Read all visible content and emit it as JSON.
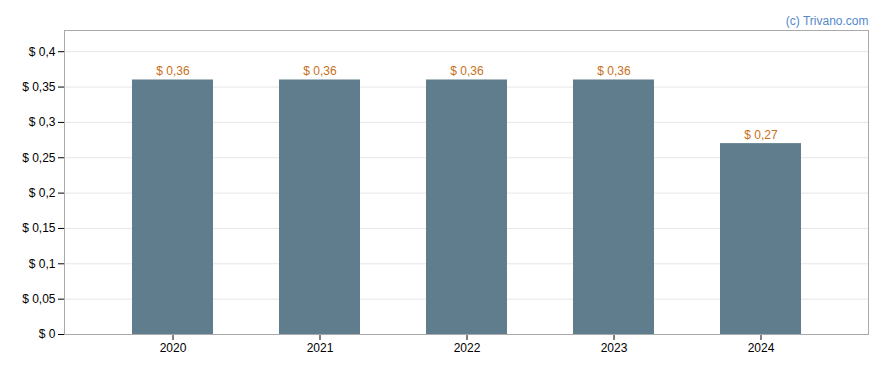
{
  "chart_data": {
    "type": "bar",
    "categories": [
      "2020",
      "2021",
      "2022",
      "2023",
      "2024"
    ],
    "values": [
      0.36,
      0.36,
      0.36,
      0.36,
      0.27
    ],
    "value_labels": [
      "$ 0,36",
      "$ 0,36",
      "$ 0,36",
      "$ 0,36",
      "$ 0,27"
    ],
    "data_labels": true,
    "color": "#5f7d8c",
    "ylim": [
      0,
      0.43
    ],
    "yticks": [
      {
        "value": 0,
        "label": "$ 0"
      },
      {
        "value": 0.05,
        "label": "$ 0,05"
      },
      {
        "value": 0.1,
        "label": "$ 0,1"
      },
      {
        "value": 0.15,
        "label": "$ 0,15"
      },
      {
        "value": 0.2,
        "label": "$ 0,2"
      },
      {
        "value": 0.25,
        "label": "$ 0,25"
      },
      {
        "value": 0.3,
        "label": "$ 0,3"
      },
      {
        "value": 0.35,
        "label": "$ 0,35"
      },
      {
        "value": 0.4,
        "label": "$ 0,4"
      }
    ],
    "grid": true,
    "annotations": [
      "(c) Trivano.com"
    ]
  }
}
